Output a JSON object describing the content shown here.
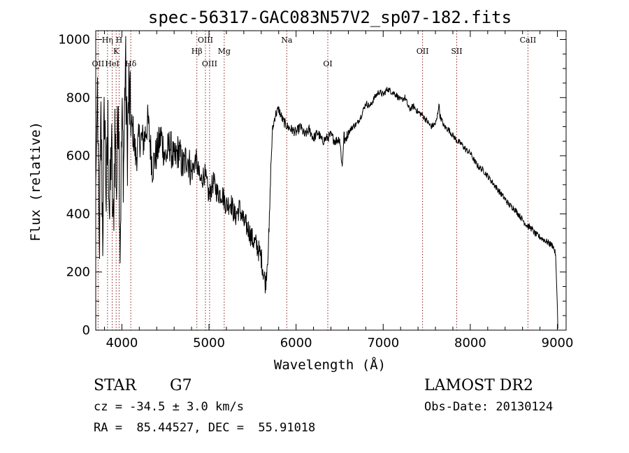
{
  "chart_data": {
    "type": "line",
    "title": "spec-56317-GAC083N57V2_sp07-182.fits",
    "xlabel": "Wavelength (Å)",
    "ylabel": "Flux (relative)",
    "xlim": [
      3700,
      9100
    ],
    "ylim": [
      0,
      1030
    ],
    "xticks": [
      4000,
      5000,
      6000,
      7000,
      8000,
      9000
    ],
    "yticks": [
      0,
      200,
      400,
      600,
      800,
      1000
    ],
    "grid": false,
    "line_color": "#000000",
    "marker_line_color": "#8b1a1a",
    "series": [
      {
        "x": [
          3700,
          3720,
          3740,
          3760,
          3780,
          3800,
          3820,
          3840,
          3860,
          3880,
          3900,
          3920,
          3940,
          3960,
          3980,
          4000,
          4020,
          4040,
          4060,
          4080,
          4100,
          4130,
          4160,
          4200,
          4250,
          4300,
          4350,
          4400,
          4450,
          4500,
          4550,
          4600,
          4650,
          4700,
          4750,
          4800,
          4850,
          4900,
          4950,
          5000,
          5050,
          5100,
          5150,
          5200,
          5250,
          5300,
          5350,
          5400,
          5450,
          5500,
          5550,
          5600,
          5630,
          5650,
          5670,
          5690,
          5710,
          5730,
          5760,
          5800,
          5850,
          5900,
          5950,
          6000,
          6050,
          6100,
          6150,
          6200,
          6250,
          6300,
          6350,
          6400,
          6450,
          6500,
          6530,
          6550,
          6560,
          6570,
          6600,
          6650,
          6700,
          6750,
          6800,
          6850,
          6900,
          6950,
          7000,
          7050,
          7100,
          7150,
          7200,
          7250,
          7300,
          7350,
          7400,
          7450,
          7500,
          7550,
          7600,
          7620,
          7640,
          7650,
          7700,
          7750,
          7800,
          7850,
          7900,
          7950,
          8000,
          8050,
          8100,
          8150,
          8200,
          8250,
          8300,
          8350,
          8400,
          8450,
          8500,
          8550,
          8600,
          8650,
          8700,
          8750,
          8800,
          8850,
          8900,
          8950,
          8980,
          9000,
          9005
        ],
        "y": [
          500,
          820,
          260,
          710,
          340,
          780,
          450,
          690,
          380,
          660,
          310,
          700,
          480,
          850,
          300,
          720,
          560,
          930,
          610,
          820,
          710,
          680,
          590,
          660,
          650,
          720,
          560,
          610,
          670,
          590,
          640,
          580,
          620,
          560,
          600,
          540,
          590,
          510,
          540,
          460,
          510,
          470,
          470,
          430,
          440,
          390,
          420,
          370,
          350,
          310,
          290,
          250,
          190,
          160,
          240,
          330,
          560,
          690,
          740,
          760,
          720,
          700,
          690,
          680,
          700,
          670,
          690,
          660,
          680,
          650,
          660,
          670,
          650,
          660,
          560,
          680,
          640,
          660,
          680,
          700,
          710,
          740,
          780,
          770,
          800,
          820,
          810,
          830,
          820,
          810,
          790,
          800,
          760,
          770,
          750,
          740,
          720,
          700,
          710,
          730,
          780,
          740,
          700,
          690,
          670,
          650,
          640,
          620,
          610,
          580,
          560,
          550,
          530,
          510,
          490,
          470,
          450,
          430,
          420,
          400,
          380,
          360,
          350,
          330,
          320,
          310,
          300,
          290,
          260,
          80,
          5
        ]
      }
    ],
    "line_markers": [
      {
        "label": "OII",
        "x": 3727,
        "row": 3
      },
      {
        "label": "Hη",
        "x": 3835,
        "row": 1
      },
      {
        "label": "HeI",
        "x": 3889,
        "row": 3
      },
      {
        "label": "K",
        "x": 3934,
        "row": 2
      },
      {
        "label": "H",
        "x": 3968,
        "row": 1
      },
      {
        "label": "Hδ",
        "x": 4102,
        "row": 3
      },
      {
        "label": "Hβ",
        "x": 4861,
        "row": 2
      },
      {
        "label": "OIII",
        "x": 4959,
        "row": 1
      },
      {
        "label": "OIII",
        "x": 5007,
        "row": 3
      },
      {
        "label": "Mg",
        "x": 5175,
        "row": 2
      },
      {
        "label": "Na",
        "x": 5893,
        "row": 1
      },
      {
        "label": "OI",
        "x": 6364,
        "row": 3
      },
      {
        "label": "OII",
        "x": 7452,
        "row": 2
      },
      {
        "label": "SII",
        "x": 7844,
        "row": 2
      },
      {
        "label": "CaII",
        "x": 8662,
        "row": 1
      }
    ]
  },
  "info": {
    "object_class": "STAR",
    "subclass": "G7",
    "survey": "LAMOST DR2",
    "redshift_line": "cz = -34.5 ± 3.0 km/s",
    "obs_date_line": "Obs-Date: 20130124",
    "coords_line": "RA =  85.44527, DEC =  55.91018"
  }
}
